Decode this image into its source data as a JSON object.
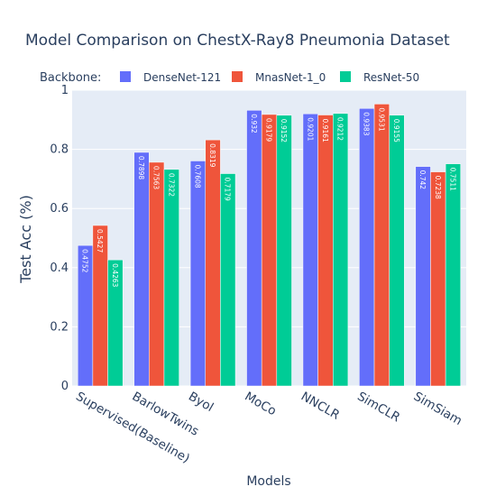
{
  "chart_data": {
    "type": "bar",
    "title": "Model Comparison on ChestX-Ray8 Pneumonia Dataset",
    "xlabel": "Models",
    "ylabel": "Test Acc (%)",
    "ylim": [
      0,
      1
    ],
    "yticks": [
      "0",
      "0.2",
      "0.4",
      "0.6",
      "0.8",
      "1"
    ],
    "ytick_values": [
      0,
      0.2,
      0.4,
      0.6,
      0.8,
      1
    ],
    "legend_title": "Backbone:",
    "legend_position": "top",
    "grid": true,
    "plot_bg": "#e5ecf6",
    "categories": [
      "Supervised(Baseline)",
      "BarlowTwins",
      "Byol",
      "MoCo",
      "NNCLR",
      "SimCLR",
      "SimSiam"
    ],
    "series": [
      {
        "name": "DenseNet-121",
        "color": "#636efa",
        "values": [
          0.4752,
          0.7898,
          0.7608,
          0.932,
          0.9201,
          0.9383,
          0.742
        ],
        "labels": [
          "0.4752",
          "0.7898",
          "0.7608",
          "0.932",
          "0.9201",
          "0.9383",
          "0.742"
        ]
      },
      {
        "name": "MnasNet-1_0",
        "color": "#ef553b",
        "values": [
          0.5427,
          0.7563,
          0.8319,
          0.9179,
          0.9161,
          0.9531,
          0.7238
        ],
        "labels": [
          "0.5427",
          "0.7563",
          "0.8319",
          "0.9179",
          "0.9161",
          "0.9531",
          "0.7238"
        ]
      },
      {
        "name": "ResNet-50",
        "color": "#00cc96",
        "values": [
          0.4263,
          0.7322,
          0.7179,
          0.9152,
          0.9212,
          0.9155,
          0.7511
        ],
        "labels": [
          "0.4263",
          "0.7322",
          "0.7179",
          "0.9152",
          "0.9212",
          "0.9155",
          "0.7511"
        ]
      }
    ]
  }
}
